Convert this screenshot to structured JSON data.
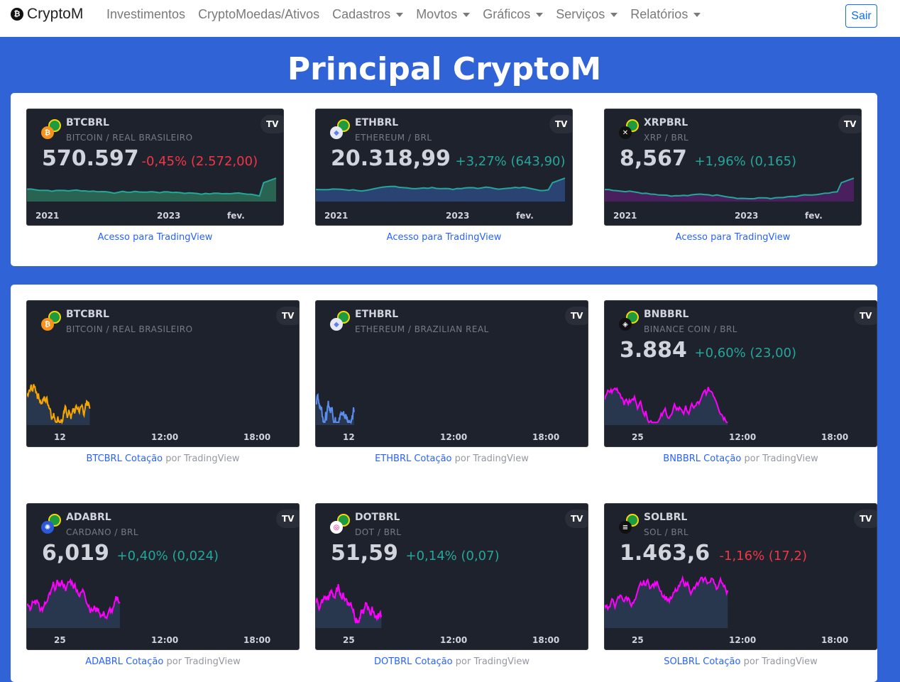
{
  "nav": {
    "brand": "CryptoM",
    "items": [
      {
        "label": "Investimentos",
        "dropdown": false
      },
      {
        "label": "CryptoMoedas/Ativos",
        "dropdown": false
      },
      {
        "label": "Cadastros",
        "dropdown": true
      },
      {
        "label": "Movtos",
        "dropdown": true
      },
      {
        "label": "Gráficos",
        "dropdown": true
      },
      {
        "label": "Serviços",
        "dropdown": true
      },
      {
        "label": "Relatórios",
        "dropdown": true
      }
    ],
    "logout": "Sair"
  },
  "title": "Principal CryptoM",
  "colors": {
    "background": "#2f63d6",
    "widget": "#1e222d",
    "up": "#26a69a",
    "down": "#f23645",
    "link": "#2962ff",
    "intraday_line": "#ff00ff"
  },
  "tickers": [
    {
      "symbol": "BTCBRL",
      "desc": "BITCOIN / REAL BRASILEIRO",
      "price": "570.597",
      "change": "-0,45% (2.572,00)",
      "dir": "down",
      "coin": "bitcoin",
      "axis": [
        "2021",
        "2023",
        "fev."
      ],
      "link": "Acesso para TradingView"
    },
    {
      "symbol": "ETHBRL",
      "desc": "ETHEREUM / BRL",
      "price": "20.318,99",
      "change": "+3,27% (643,90)",
      "dir": "up",
      "coin": "ethereum",
      "axis": [
        "2021",
        "2023",
        "fev."
      ],
      "link": "Acesso para TradingView"
    },
    {
      "symbol": "XRPBRL",
      "desc": "XRP / BRL",
      "price": "8,567",
      "change": "+1,96% (0,165)",
      "dir": "up",
      "coin": "xrp",
      "axis": [
        "2021",
        "2023",
        "fev."
      ],
      "link": "Acesso para TradingView"
    }
  ],
  "minis": [
    {
      "symbol": "BTCBRL",
      "desc": "BITCOIN / REAL BRASILEIRO",
      "price": "",
      "change": "",
      "dir": "",
      "coin": "bitcoin",
      "axis": [
        "12",
        "12:00",
        "18:00"
      ],
      "link": "BTCBRL Cotação",
      "by": "por TradingView",
      "line": "#f7a600"
    },
    {
      "symbol": "ETHBRL",
      "desc": "ETHEREUM / BRAZILIAN REAL",
      "price": "",
      "change": "",
      "dir": "",
      "coin": "ethereum",
      "axis": [
        "12",
        "12:00",
        "18:00"
      ],
      "link": "ETHBRL Cotação",
      "by": "por TradingView",
      "line": "#5b8def"
    },
    {
      "symbol": "BNBBRL",
      "desc": "BINANCE COIN / BRL",
      "price": "3.884",
      "change": "+0,60% (23,00)",
      "dir": "up",
      "coin": "binance",
      "axis": [
        "25",
        "12:00",
        "18:00"
      ],
      "link": "BNBBRL Cotação",
      "by": "por TradingView",
      "line": "#ff00ff"
    },
    {
      "symbol": "ADABRL",
      "desc": "CARDANO / BRL",
      "price": "6,019",
      "change": "+0,40% (0,024)",
      "dir": "up",
      "coin": "cardano",
      "axis": [
        "25",
        "12:00",
        "18:00"
      ],
      "link": "ADABRL Cotação",
      "by": "por TradingView",
      "line": "#ff00ff"
    },
    {
      "symbol": "DOTBRL",
      "desc": "DOT / BRL",
      "price": "51,59",
      "change": "+0,14% (0,07)",
      "dir": "up",
      "coin": "polkadot",
      "axis": [
        "25",
        "12:00",
        "18:00"
      ],
      "link": "DOTBRL Cotação",
      "by": "por TradingView",
      "line": "#ff00ff"
    },
    {
      "symbol": "SOLBRL",
      "desc": "SOL / BRL",
      "price": "1.463,6",
      "change": "-1,16% (17,2)",
      "dir": "down",
      "coin": "solana",
      "axis": [
        "25",
        "12:00",
        "18:00"
      ],
      "link": "SOLBRL Cotação",
      "by": "por TradingView",
      "line": "#ff00ff"
    }
  ]
}
